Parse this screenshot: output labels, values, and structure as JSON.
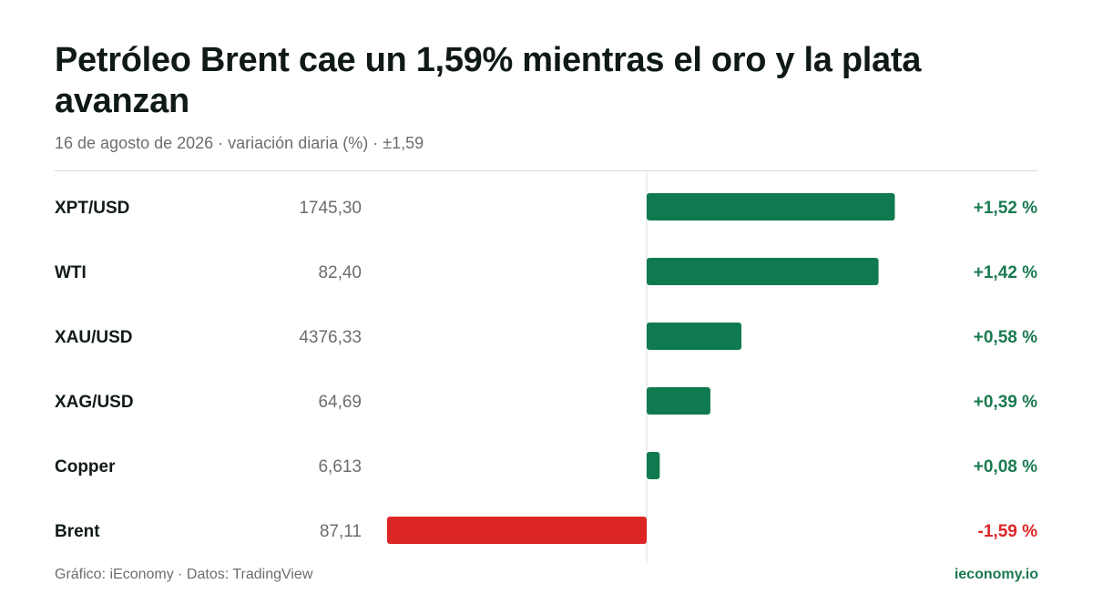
{
  "header": {
    "title": "Petróleo Brent cae un 1,59% mientras el oro y la plata avanzan",
    "subtitle": "16 de agosto de 2026 · variación diaria (%) · ±1,59"
  },
  "footer": {
    "source": "Gráfico: iEconomy · Datos: TradingView",
    "brand": "ieconomy.io"
  },
  "colors": {
    "positive": "#0f7a4f",
    "negative": "#dc2626",
    "positive_text": "#1a7a50",
    "negative_text": "#dc2626"
  },
  "chart_data": {
    "type": "bar",
    "orientation": "horizontal",
    "xlim": [
      -1.59,
      1.59
    ],
    "grid": false,
    "categories": [
      "XPT/USD",
      "WTI",
      "XAU/USD",
      "XAG/USD",
      "Copper",
      "Brent"
    ],
    "prices": [
      "1745,30",
      "82,40",
      "4376,33",
      "64,69",
      "6,613",
      "87,11"
    ],
    "values": [
      1.52,
      1.42,
      0.58,
      0.39,
      0.08,
      -1.59
    ],
    "value_labels": [
      "+1,52 %",
      "+1,42 %",
      "+0,58 %",
      "+0,39 %",
      "+0,08 %",
      "-1,59 %"
    ]
  }
}
